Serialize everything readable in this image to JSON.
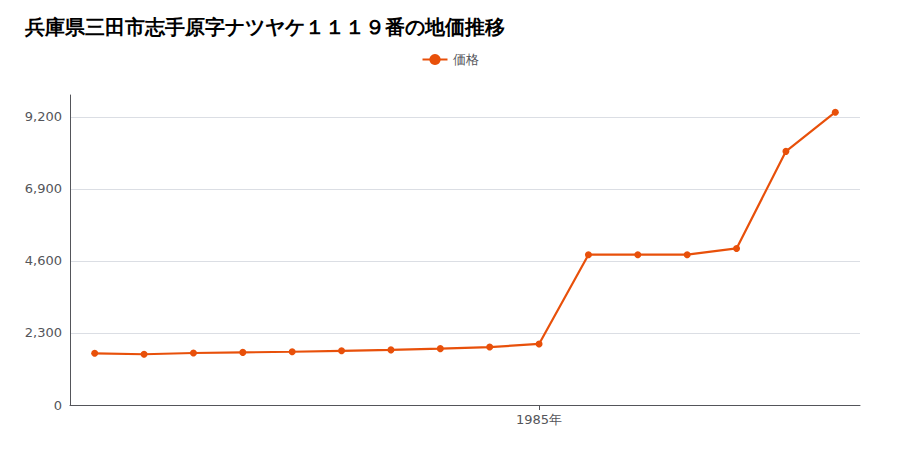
{
  "chart_data": {
    "type": "line",
    "title": "兵庫県三田市志手原字ナツヤケ１１１９番の地価推移",
    "x": [
      1976,
      1977,
      1978,
      1979,
      1980,
      1981,
      1982,
      1983,
      1984,
      1985,
      1986,
      1987,
      1988,
      1989,
      1990,
      1991
    ],
    "series": [
      {
        "name": "価格",
        "color": "#e8500a",
        "marker": "circle",
        "values": [
          1650,
          1620,
          1660,
          1680,
          1700,
          1730,
          1760,
          1800,
          1850,
          1950,
          4800,
          4800,
          4800,
          5000,
          8100,
          9350
        ]
      }
    ],
    "xlim": [
      1975.5,
      1991.5
    ],
    "xticks": [
      {
        "value": 1985,
        "label": "1985年"
      }
    ],
    "ylim": [
      0,
      9900
    ],
    "yticks": [
      0,
      {
        "value": 2300,
        "label": "2,300"
      },
      {
        "value": 4600,
        "label": "4,600"
      },
      {
        "value": 6900,
        "label": "6,900"
      },
      {
        "value": 9200,
        "label": "9,200"
      }
    ],
    "grid": true,
    "legend": "top"
  }
}
